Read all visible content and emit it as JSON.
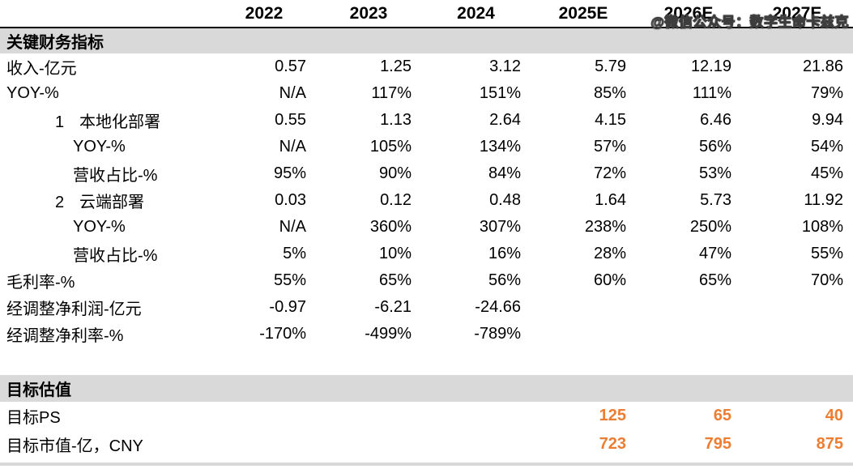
{
  "watermark": {
    "text": "@微信公众号：数字生命卡兹克"
  },
  "columns": [
    "2022",
    "2023",
    "2024",
    "2025E",
    "2026E",
    "2027E"
  ],
  "sections": [
    {
      "title": "关键财务指标",
      "rows": [
        {
          "label": "收入-亿元",
          "indent": 0,
          "values": [
            "0.57",
            "1.25",
            "3.12",
            "5.79",
            "12.19",
            "21.86"
          ]
        },
        {
          "label": "YOY-%",
          "indent": 0,
          "values": [
            "N/A",
            "117%",
            "151%",
            "85%",
            "111%",
            "79%"
          ]
        },
        {
          "num": "1",
          "label": "本地化部署",
          "indent": 1,
          "values": [
            "0.55",
            "1.13",
            "2.64",
            "4.15",
            "6.46",
            "9.94"
          ]
        },
        {
          "label": "YOY-%",
          "indent": 2,
          "values": [
            "N/A",
            "105%",
            "134%",
            "57%",
            "56%",
            "54%"
          ]
        },
        {
          "label": "营收占比-%",
          "indent": 2,
          "values": [
            "95%",
            "90%",
            "84%",
            "72%",
            "53%",
            "45%"
          ]
        },
        {
          "num": "2",
          "label": "云端部署",
          "indent": 1,
          "values": [
            "0.03",
            "0.12",
            "0.48",
            "1.64",
            "5.73",
            "11.92"
          ]
        },
        {
          "label": "YOY-%",
          "indent": 2,
          "values": [
            "N/A",
            "360%",
            "307%",
            "238%",
            "250%",
            "108%"
          ]
        },
        {
          "label": "营收占比-%",
          "indent": 2,
          "values": [
            "5%",
            "10%",
            "16%",
            "28%",
            "47%",
            "55%"
          ]
        },
        {
          "label": "毛利率-%",
          "indent": 0,
          "values": [
            "55%",
            "65%",
            "56%",
            "60%",
            "65%",
            "70%"
          ]
        },
        {
          "label": "经调整净利润-亿元",
          "indent": 0,
          "values": [
            "-0.97",
            "-6.21",
            "-24.66",
            "",
            "",
            ""
          ]
        },
        {
          "label": "经调整净利率-%",
          "indent": 0,
          "values": [
            "-170%",
            "-499%",
            "-789%",
            "",
            "",
            ""
          ]
        }
      ]
    },
    {
      "title": "目标估值",
      "rows": [
        {
          "label": "目标PS",
          "indent": 0,
          "highlight": true,
          "values": [
            "",
            "",
            "",
            "125",
            "65",
            "40"
          ]
        },
        {
          "label": "目标市值-亿，CNY",
          "indent": 0,
          "highlight": true,
          "values": [
            "",
            "",
            "",
            "723",
            "795",
            "875"
          ]
        }
      ]
    }
  ],
  "colors": {
    "accent_orange": "#ED7D31",
    "band_gray": "#D9D9D9",
    "text_black": "#000000"
  }
}
